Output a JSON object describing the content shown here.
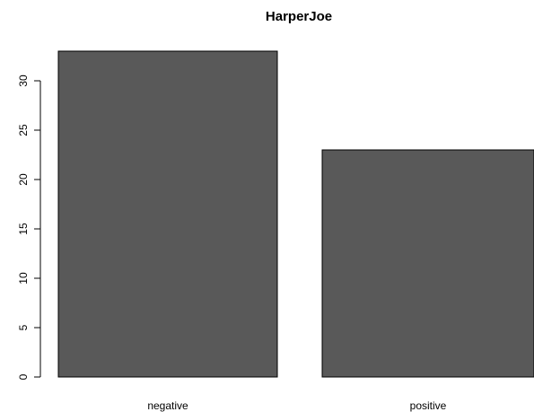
{
  "chart_data": {
    "type": "bar",
    "title": "HarperJoe",
    "xlabel": "",
    "ylabel": "",
    "categories": [
      "negative",
      "positive"
    ],
    "values": [
      33,
      23
    ],
    "ylim": [
      0,
      33
    ],
    "yticks": [
      0,
      5,
      10,
      15,
      20,
      25,
      30
    ],
    "bar_color": "#595959",
    "grid": false
  }
}
